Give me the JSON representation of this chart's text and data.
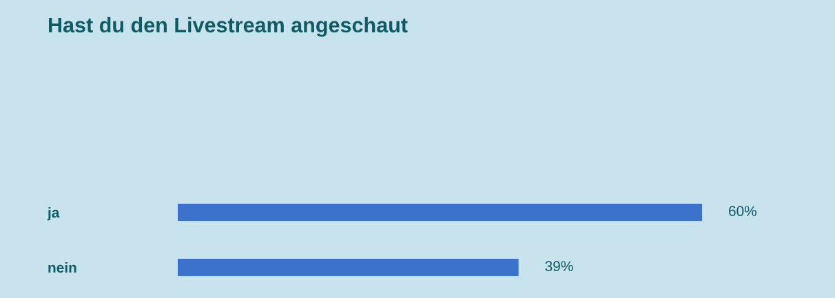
{
  "chart_data": {
    "type": "bar",
    "orientation": "horizontal",
    "title": "Hast du den Livestream angeschaut",
    "categories": [
      "ja",
      "nein"
    ],
    "values": [
      60,
      39
    ],
    "value_labels": [
      "60%",
      "39%"
    ],
    "color": "#3c72cc",
    "tick_labels": "y"
  }
}
